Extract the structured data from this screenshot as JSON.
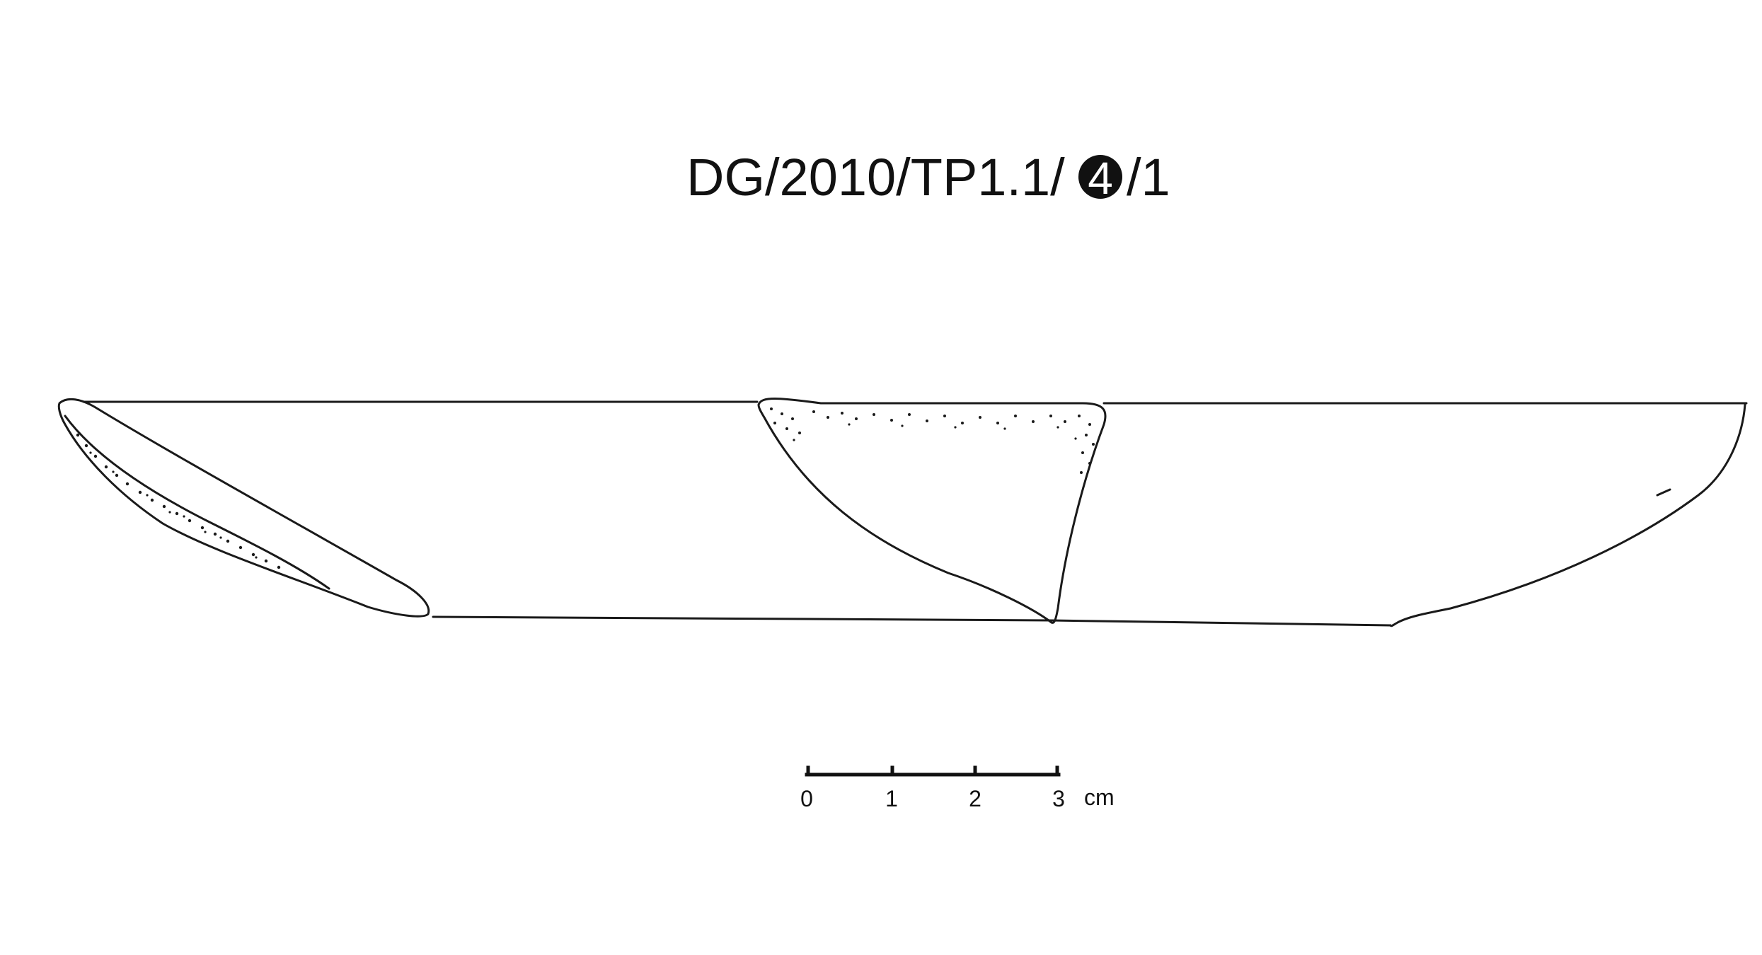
{
  "title": {
    "prefix": "DG/2010/TP1.1/",
    "circled_number": "4",
    "suffix": "/1"
  },
  "scale_bar": {
    "ticks": [
      "0",
      "1",
      "2",
      "3"
    ],
    "unit": "cm"
  },
  "colors": {
    "ink": "#1a1a1a",
    "background": "#ffffff"
  }
}
